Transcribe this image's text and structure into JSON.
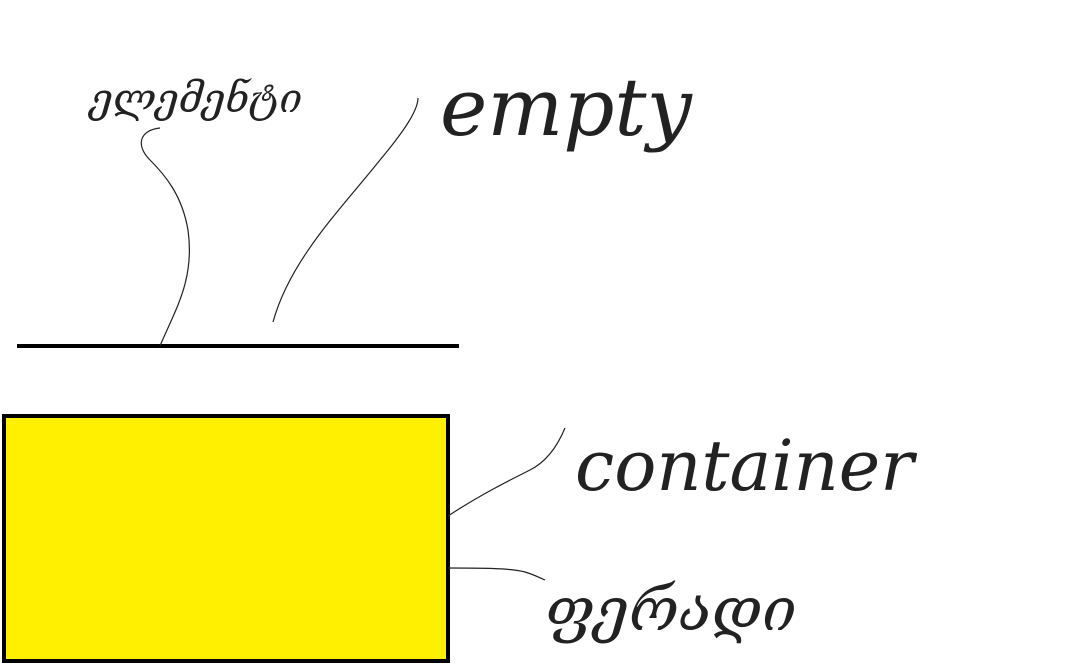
{
  "labels": {
    "line_label": "ელემენტი",
    "line_note": "empty",
    "box_label": "container",
    "box_note": "ფერადი"
  }
}
